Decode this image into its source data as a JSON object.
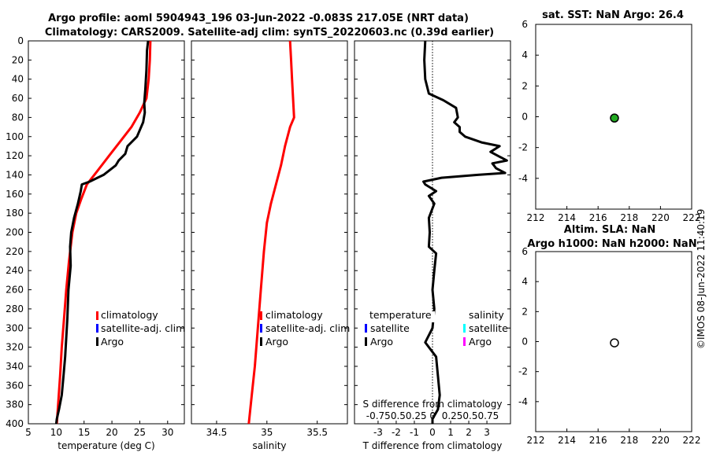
{
  "title": {
    "line1": "Argo profile: aoml 5904943_196 03-Jun-2022 -0.083S 217.05E (NRT data)",
    "line2": "Climatology: CARS2009. Satellite-adj clim: synTS_20220603.nc (0.39d earlier)"
  },
  "side_label": "©IMOS 08-Jun-2022 11:40:19",
  "colors": {
    "climatology": "#ff0000",
    "satellite": "#0000ff",
    "argo": "#000000",
    "sat_salinity": "#00ffff",
    "argo_salinity": "#ff00ff",
    "sst_marker": "#22aa22"
  },
  "depth_ticks": [
    "0",
    "20",
    "40",
    "60",
    "80",
    "100",
    "120",
    "140",
    "160",
    "180",
    "200",
    "220",
    "240",
    "260",
    "280",
    "300",
    "320",
    "340",
    "360",
    "380",
    "400"
  ],
  "legend": {
    "climatology": "climatology",
    "satellite_adj": "satellite-adj. clim",
    "argo": "Argo",
    "temperature": "temperature",
    "salinity": "salinity",
    "satellite": "satellite"
  },
  "chart_data": [
    {
      "type": "line",
      "xlabel": "temperature (deg C)",
      "ylabel": "depth",
      "xlim": [
        5,
        33
      ],
      "ylim": [
        0,
        400
      ],
      "xticks": [
        5,
        10,
        15,
        20,
        25,
        30
      ],
      "xtick_labels": [
        "5",
        "10",
        "15",
        "20",
        "25",
        "30"
      ],
      "series": [
        {
          "name": "climatology",
          "color": "#ff0000",
          "points": [
            [
              26.9,
              0
            ],
            [
              26.8,
              20
            ],
            [
              26.6,
              40
            ],
            [
              26.2,
              60
            ],
            [
              25.0,
              75
            ],
            [
              23.5,
              90
            ],
            [
              21.5,
              105
            ],
            [
              19.5,
              120
            ],
            [
              17.5,
              135
            ],
            [
              15.5,
              150
            ],
            [
              14.5,
              165
            ],
            [
              13.6,
              180
            ],
            [
              12.9,
              200
            ],
            [
              12.3,
              230
            ],
            [
              11.8,
              260
            ],
            [
              11.4,
              290
            ],
            [
              11.0,
              320
            ],
            [
              10.7,
              350
            ],
            [
              10.4,
              375
            ],
            [
              10.1,
              400
            ]
          ]
        },
        {
          "name": "Argo",
          "color": "#000000",
          "points": [
            [
              26.5,
              0
            ],
            [
              26.3,
              10
            ],
            [
              26.2,
              30
            ],
            [
              26.0,
              50
            ],
            [
              25.8,
              65
            ],
            [
              25.9,
              75
            ],
            [
              25.6,
              85
            ],
            [
              24.5,
              100
            ],
            [
              22.8,
              110
            ],
            [
              22.4,
              118
            ],
            [
              21.2,
              125
            ],
            [
              20.7,
              130
            ],
            [
              18.5,
              140
            ],
            [
              16.0,
              147
            ],
            [
              14.6,
              150
            ],
            [
              14.4,
              157
            ],
            [
              13.9,
              170
            ],
            [
              13.2,
              185
            ],
            [
              12.7,
              200
            ],
            [
              12.5,
              215
            ],
            [
              12.6,
              235
            ],
            [
              12.2,
              260
            ],
            [
              12.0,
              290
            ],
            [
              11.8,
              310
            ],
            [
              11.6,
              330
            ],
            [
              11.3,
              350
            ],
            [
              11.0,
              370
            ],
            [
              10.5,
              385
            ],
            [
              10.1,
              395
            ],
            [
              10.0,
              400
            ]
          ]
        }
      ]
    },
    {
      "type": "line",
      "xlabel": "salinity",
      "ylabel": "depth",
      "xlim": [
        34.25,
        35.8
      ],
      "ylim": [
        0,
        400
      ],
      "xticks": [
        34.5,
        35,
        35.5
      ],
      "xtick_labels": [
        "34.5",
        "35",
        "35.5"
      ],
      "series": [
        {
          "name": "climatology",
          "color": "#ff0000",
          "points": [
            [
              35.23,
              0
            ],
            [
              35.24,
              20
            ],
            [
              35.25,
              40
            ],
            [
              35.26,
              60
            ],
            [
              35.27,
              80
            ],
            [
              35.23,
              90
            ],
            [
              35.18,
              110
            ],
            [
              35.14,
              130
            ],
            [
              35.09,
              150
            ],
            [
              35.04,
              170
            ],
            [
              35.0,
              190
            ],
            [
              34.97,
              220
            ],
            [
              34.94,
              260
            ],
            [
              34.91,
              300
            ],
            [
              34.88,
              340
            ],
            [
              34.85,
              370
            ],
            [
              34.82,
              400
            ]
          ]
        }
      ]
    },
    {
      "type": "line",
      "xlabel": "T difference from climatology",
      "ylabel": "depth",
      "xlim": [
        -4.3,
        4.3
      ],
      "ylim": [
        0,
        400
      ],
      "xticks": [
        -3,
        -2,
        -1,
        0,
        1,
        2,
        3
      ],
      "xtick_labels": [
        "-3",
        "-2",
        "-1",
        "0",
        "1",
        "2",
        "3"
      ],
      "top_axis_label": "S difference from climatology",
      "top_axis_ticks": [
        "-0.75",
        "-0.5",
        "-0.25",
        "0",
        "0.25",
        "0.5",
        "0.75"
      ],
      "top_axis_text": "-0.750.50.25 0  0.250.50.75",
      "legend_headers": [
        "temperature",
        "salinity"
      ],
      "series": [
        {
          "name": "Argo T difference",
          "color": "#000000",
          "points": [
            [
              -0.4,
              0
            ],
            [
              -0.45,
              20
            ],
            [
              -0.4,
              40
            ],
            [
              -0.2,
              55
            ],
            [
              0.6,
              62
            ],
            [
              1.3,
              70
            ],
            [
              1.4,
              80
            ],
            [
              1.2,
              85
            ],
            [
              1.5,
              90
            ],
            [
              1.5,
              95
            ],
            [
              1.8,
              100
            ],
            [
              2.7,
              106
            ],
            [
              3.7,
              110
            ],
            [
              3.2,
              116
            ],
            [
              4.1,
              125
            ],
            [
              3.3,
              128
            ],
            [
              3.5,
              133
            ],
            [
              4.0,
              138
            ],
            [
              2.5,
              140
            ],
            [
              0.5,
              143
            ],
            [
              -0.5,
              147
            ],
            [
              -0.4,
              150
            ],
            [
              0.2,
              157
            ],
            [
              -0.2,
              162
            ],
            [
              0.1,
              170
            ],
            [
              -0.2,
              185
            ],
            [
              -0.15,
              200
            ],
            [
              -0.2,
              215
            ],
            [
              0.2,
              222
            ],
            [
              0.1,
              240
            ],
            [
              0.0,
              260
            ],
            [
              0.1,
              280
            ],
            [
              0.0,
              300
            ],
            [
              -0.4,
              315
            ],
            [
              0.2,
              330
            ],
            [
              0.3,
              350
            ],
            [
              0.4,
              370
            ],
            [
              0.3,
              385
            ],
            [
              0.0,
              395
            ],
            [
              0.0,
              400
            ]
          ]
        }
      ]
    },
    {
      "type": "scatter",
      "title": "sat. SST: NaN Argo: 26.4",
      "xlim": [
        212,
        222
      ],
      "ylim": [
        -6,
        6
      ],
      "xticks": [
        212,
        214,
        216,
        218,
        220,
        222
      ],
      "yticks": [
        6,
        4,
        2,
        0,
        -2,
        -4
      ],
      "points": [
        {
          "x": 217.05,
          "y": -0.083,
          "fill": "#22aa22"
        }
      ]
    },
    {
      "type": "scatter",
      "title": "Altim. SLA: NaN",
      "subtitle": "Argo h1000: NaN h2000: NaN",
      "xlim": [
        212,
        222
      ],
      "ylim": [
        -6,
        6
      ],
      "xticks": [
        212,
        214,
        216,
        218,
        220,
        222
      ],
      "yticks": [
        6,
        4,
        2,
        0,
        -2,
        -4
      ],
      "points": [
        {
          "x": 217.05,
          "y": -0.083,
          "fill": "#ffffff"
        }
      ]
    }
  ]
}
